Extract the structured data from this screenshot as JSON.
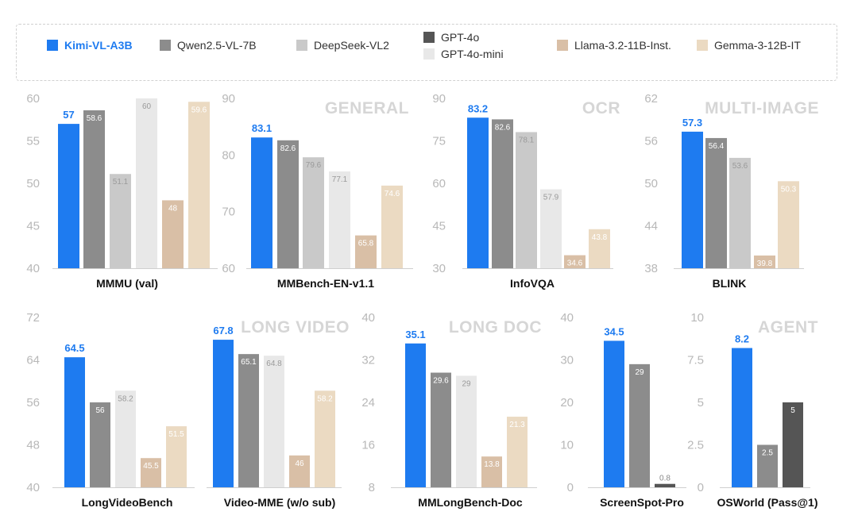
{
  "legend": [
    {
      "key": "kimi",
      "label": "Kimi-VL-A3B",
      "color": "#1E7BF0",
      "bold": true
    },
    {
      "key": "qwen",
      "label": "Qwen2.5-VL-7B",
      "color": "#8C8C8C"
    },
    {
      "key": "deepseek",
      "label": "DeepSeek-VL2",
      "color": "#C9C9C9"
    },
    {
      "key": "gpt4o",
      "label": "GPT-4o",
      "color": "#555555"
    },
    {
      "key": "gpt4omini",
      "label": "GPT-4o-mini",
      "color": "#E8E8E8"
    },
    {
      "key": "llama",
      "label": "Llama-3.2-11B-Inst.",
      "color": "#D9BFA6"
    },
    {
      "key": "gemma",
      "label": "Gemma-3-12B-IT",
      "color": "#EBDAC2"
    }
  ],
  "sections": [
    "GENERAL",
    "OCR",
    "MULTI-IMAGE",
    "LONG VIDEO",
    "LONG DOC",
    "AGENT"
  ],
  "chart_data": [
    {
      "type": "bar",
      "title": "MMMU (val)",
      "ylim": [
        40,
        60
      ],
      "yticks": [
        "40",
        "45",
        "50",
        "55",
        "60"
      ],
      "bars": [
        {
          "model": "kimi",
          "value": 57,
          "label": "57"
        },
        {
          "model": "qwen",
          "value": 58.6,
          "label": "58.6"
        },
        {
          "model": "deepseek",
          "value": 51.1,
          "label": "51.1"
        },
        {
          "model": "gpt4omini",
          "value": 60,
          "label": "60"
        },
        {
          "model": "llama",
          "value": 48,
          "label": "48"
        },
        {
          "model": "gemma",
          "value": 59.6,
          "label": "59.6"
        }
      ]
    },
    {
      "type": "bar",
      "title": "MMBench-EN-v1.1",
      "ylim": [
        60,
        90
      ],
      "yticks": [
        "60",
        "70",
        "80",
        "90"
      ],
      "bars": [
        {
          "model": "kimi",
          "value": 83.1,
          "label": "83.1"
        },
        {
          "model": "qwen",
          "value": 82.6,
          "label": "82.6"
        },
        {
          "model": "deepseek",
          "value": 79.6,
          "label": "79.6"
        },
        {
          "model": "gpt4omini",
          "value": 77.1,
          "label": "77.1"
        },
        {
          "model": "llama",
          "value": 65.8,
          "label": "65.8"
        },
        {
          "model": "gemma",
          "value": 74.6,
          "label": "74.6"
        }
      ]
    },
    {
      "type": "bar",
      "title": "InfoVQA",
      "ylim": [
        30,
        90
      ],
      "yticks": [
        "30",
        "45",
        "60",
        "75",
        "90"
      ],
      "bars": [
        {
          "model": "kimi",
          "value": 83.2,
          "label": "83.2"
        },
        {
          "model": "qwen",
          "value": 82.6,
          "label": "82.6"
        },
        {
          "model": "deepseek",
          "value": 78.1,
          "label": "78.1"
        },
        {
          "model": "gpt4omini",
          "value": 57.9,
          "label": "57.9"
        },
        {
          "model": "llama",
          "value": 34.6,
          "label": "34.6"
        },
        {
          "model": "gemma",
          "value": 43.8,
          "label": "43.8"
        }
      ]
    },
    {
      "type": "bar",
      "title": "BLINK",
      "ylim": [
        38,
        62
      ],
      "yticks": [
        "38",
        "44",
        "50",
        "56",
        "62"
      ],
      "bars": [
        {
          "model": "kimi",
          "value": 57.3,
          "label": "57.3"
        },
        {
          "model": "qwen",
          "value": 56.4,
          "label": "56.4"
        },
        {
          "model": "deepseek",
          "value": 53.6,
          "label": "53.6"
        },
        {
          "model": "llama",
          "value": 39.8,
          "label": "39.8"
        },
        {
          "model": "gemma",
          "value": 50.3,
          "label": "50.3"
        }
      ]
    },
    {
      "type": "bar",
      "title": "LongVideoBench",
      "ylim": [
        40,
        72
      ],
      "yticks": [
        "40",
        "48",
        "56",
        "64",
        "72"
      ],
      "bars": [
        {
          "model": "kimi",
          "value": 64.5,
          "label": "64.5"
        },
        {
          "model": "qwen",
          "value": 56,
          "label": "56"
        },
        {
          "model": "gpt4omini",
          "value": 58.2,
          "label": "58.2"
        },
        {
          "model": "llama",
          "value": 45.5,
          "label": "45.5"
        },
        {
          "model": "gemma",
          "value": 51.5,
          "label": "51.5"
        }
      ]
    },
    {
      "type": "bar",
      "title": "Video-MME (w/o sub)",
      "ylim": [
        40,
        72
      ],
      "bars": [
        {
          "model": "kimi",
          "value": 67.8,
          "label": "67.8"
        },
        {
          "model": "qwen",
          "value": 65.1,
          "label": "65.1"
        },
        {
          "model": "gpt4omini",
          "value": 64.8,
          "label": "64.8"
        },
        {
          "model": "llama",
          "value": 46,
          "label": "46"
        },
        {
          "model": "gemma",
          "value": 58.2,
          "label": "58.2"
        }
      ]
    },
    {
      "type": "bar",
      "title": "MMLongBench-Doc",
      "ylim": [
        8,
        40
      ],
      "yticks": [
        "8",
        "16",
        "24",
        "32",
        "40"
      ],
      "bars": [
        {
          "model": "kimi",
          "value": 35.1,
          "label": "35.1"
        },
        {
          "model": "qwen",
          "value": 29.6,
          "label": "29.6"
        },
        {
          "model": "gpt4omini",
          "value": 29,
          "label": "29"
        },
        {
          "model": "llama",
          "value": 13.8,
          "label": "13.8"
        },
        {
          "model": "gemma",
          "value": 21.3,
          "label": "21.3"
        }
      ]
    },
    {
      "type": "bar",
      "title": "ScreenSpot-Pro",
      "ylim": [
        0,
        40
      ],
      "yticks": [
        "0",
        "10",
        "20",
        "30",
        "40"
      ],
      "bars": [
        {
          "model": "kimi",
          "value": 34.5,
          "label": "34.5"
        },
        {
          "model": "qwen",
          "value": 29,
          "label": "29"
        },
        {
          "model": "gpt4o",
          "value": 0.8,
          "label": "0.8"
        }
      ]
    },
    {
      "type": "bar",
      "title": "OSWorld (Pass@1)",
      "ylim": [
        0,
        10
      ],
      "yticks": [
        "0",
        "2.5",
        "5",
        "7.5",
        "10"
      ],
      "bars": [
        {
          "model": "kimi",
          "value": 8.2,
          "label": "8.2"
        },
        {
          "model": "qwen",
          "value": 2.5,
          "label": "2.5"
        },
        {
          "model": "gpt4o",
          "value": 5,
          "label": "5"
        }
      ]
    }
  ]
}
